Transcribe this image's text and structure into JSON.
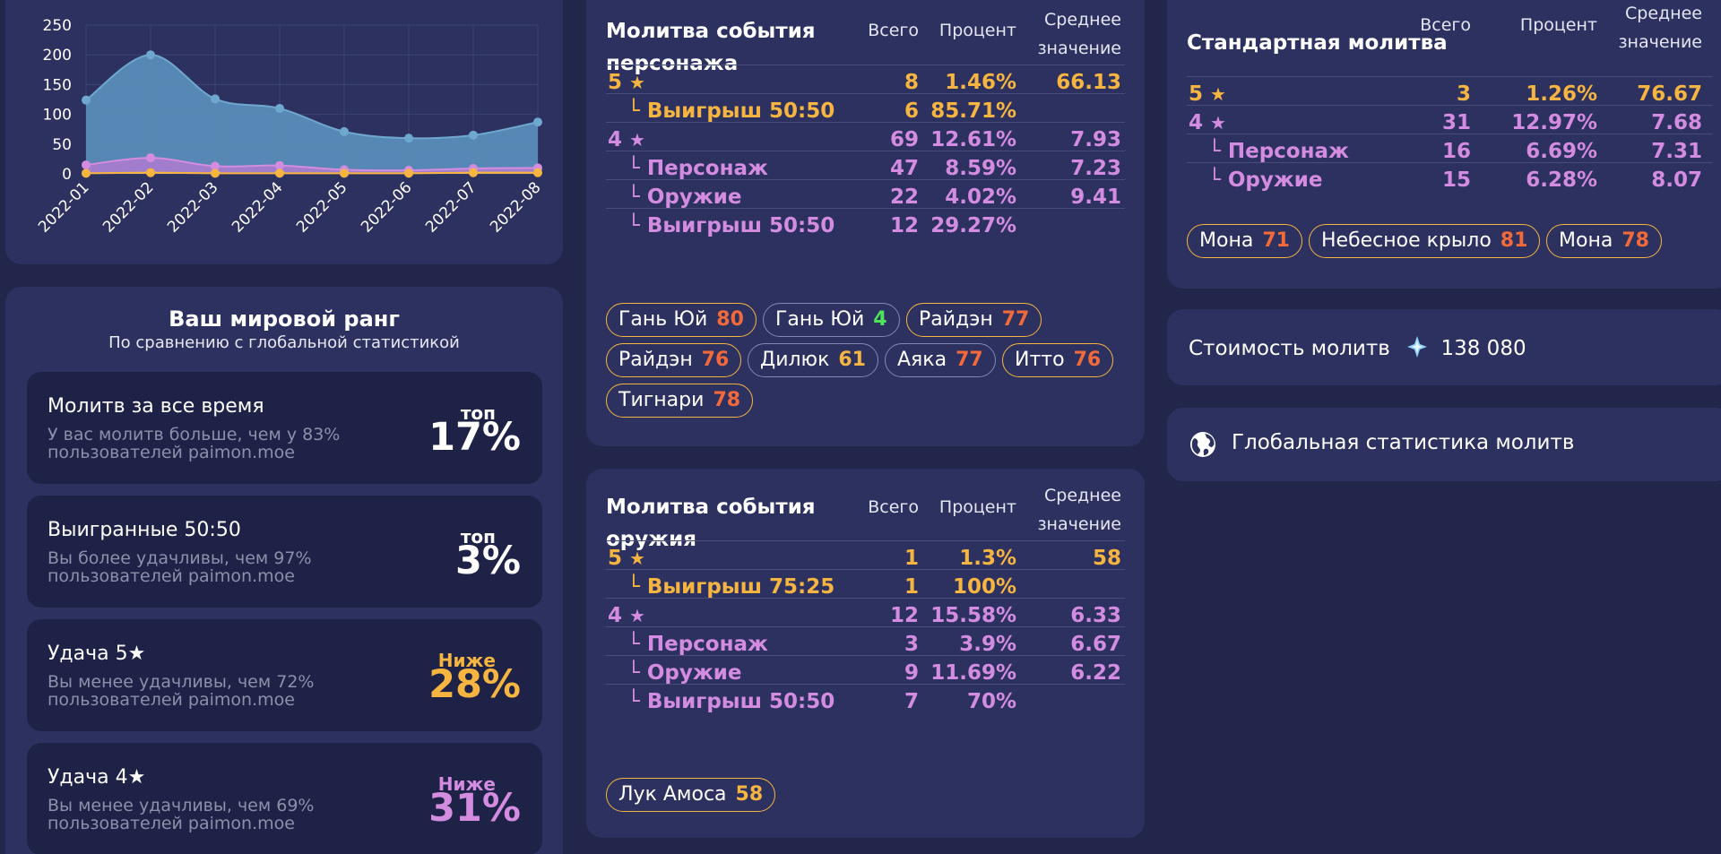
{
  "colors": {
    "background": "#22264a",
    "card": "#2c3160",
    "gold": "#f6b540",
    "purple": "#d38ce0",
    "orange_pity": "#f26a3a",
    "green_pity": "#4fe35c",
    "area_blue": "#5b8fba",
    "line_blue": "#7bb6d6"
  },
  "chart_data": {
    "type": "area",
    "x": [
      "2022-01",
      "2022-02",
      "2022-03",
      "2022-04",
      "2022-05",
      "2022-06",
      "2022-07",
      "2022-08"
    ],
    "ylim": [
      0,
      250
    ],
    "yticks": [
      "250",
      "200",
      "150",
      "100",
      "50",
      "0"
    ],
    "grid": true,
    "series": [
      {
        "color": "#6fa8cf",
        "values": [
          124,
          200,
          126,
          110,
          71,
          60,
          65,
          87
        ]
      },
      {
        "color": "#d38ce0",
        "values": [
          15,
          27,
          13,
          14,
          7,
          6,
          9,
          10
        ]
      },
      {
        "color": "#f6b540",
        "values": [
          1,
          2,
          1,
          1,
          1,
          1,
          2,
          2
        ]
      }
    ]
  },
  "rank": {
    "title": "Ваш мировой ранг",
    "subtitle": "По сравнению с глобальной статистикой",
    "items": [
      {
        "title": "Молитв за все время",
        "desc": "У вас молитв больше, чем у 83% пользователей paimon.moe",
        "prefix": "топ",
        "value": "17%",
        "color": "#ffffff"
      },
      {
        "title": "Выигранные 50:50",
        "desc": "Вы более удачливы, чем 97% пользователей paimon.moe",
        "prefix": "топ",
        "value": "3%",
        "color": "#ffffff"
      },
      {
        "title": "Удача 5★",
        "desc": "Вы менее удачливы, чем 72% пользователей paimon.moe",
        "prefix": "Ниже",
        "value": "28%",
        "color": "#f6b540"
      },
      {
        "title": "Удача 4★",
        "desc": "Вы менее удачливы, чем 69% пользователей paimon.moe",
        "prefix": "Ниже",
        "value": "31%",
        "color": "#d38ce0"
      }
    ]
  },
  "banners": {
    "character": {
      "title_line1": "Молитва события",
      "title_line2": "персонажа",
      "col_total": "Всего",
      "col_percent": "Процент",
      "col_avg_line1": "Среднее",
      "col_avg_line2": "значение",
      "rows": [
        {
          "label": "5",
          "star": "★",
          "total": "8",
          "percent": "1.46%",
          "avg": "66.13",
          "tone": "gold",
          "indent": false
        },
        {
          "label": "└ Выигрыш 50:50",
          "star": "",
          "total": "6",
          "percent": "85.71%",
          "avg": "",
          "tone": "gold",
          "indent": true
        },
        {
          "label": "4",
          "star": "★",
          "total": "69",
          "percent": "12.61%",
          "avg": "7.93",
          "tone": "purple",
          "indent": false
        },
        {
          "label": "└ Персонаж",
          "star": "",
          "total": "47",
          "percent": "8.59%",
          "avg": "7.23",
          "tone": "purple",
          "indent": true
        },
        {
          "label": "└ Оружие",
          "star": "",
          "total": "22",
          "percent": "4.02%",
          "avg": "9.41",
          "tone": "purple",
          "indent": true
        },
        {
          "label": "└ Выигрыш 50:50",
          "star": "",
          "total": "12",
          "percent": "29.27%",
          "avg": "",
          "tone": "purple",
          "indent": true
        }
      ],
      "chips": [
        {
          "name": "Гань Юй",
          "pity": "80",
          "pity_color": "#f26a3a",
          "border": "gold"
        },
        {
          "name": "Гань Юй",
          "pity": "4",
          "pity_color": "#4fe35c",
          "border": "grey"
        },
        {
          "name": "Райдэн",
          "pity": "77",
          "pity_color": "#f26a3a",
          "border": "gold"
        },
        {
          "name": "Райдэн",
          "pity": "76",
          "pity_color": "#f26a3a",
          "border": "gold"
        },
        {
          "name": "Дилюк",
          "pity": "61",
          "pity_color": "#f6b540",
          "border": "grey"
        },
        {
          "name": "Аяка",
          "pity": "77",
          "pity_color": "#f26a3a",
          "border": "grey"
        },
        {
          "name": "Итто",
          "pity": "76",
          "pity_color": "#f26a3a",
          "border": "gold"
        },
        {
          "name": "Тигнари",
          "pity": "78",
          "pity_color": "#f26a3a",
          "border": "gold"
        }
      ]
    },
    "weapon": {
      "title_line1": "Молитва события",
      "title_line2": "оружия",
      "col_total": "Всего",
      "col_percent": "Процент",
      "col_avg_line1": "Среднее",
      "col_avg_line2": "значение",
      "rows": [
        {
          "label": "5",
          "star": "★",
          "total": "1",
          "percent": "1.3%",
          "avg": "58",
          "tone": "gold",
          "indent": false
        },
        {
          "label": "└ Выигрыш 75:25",
          "star": "",
          "total": "1",
          "percent": "100%",
          "avg": "",
          "tone": "gold",
          "indent": true
        },
        {
          "label": "4",
          "star": "★",
          "total": "12",
          "percent": "15.58%",
          "avg": "6.33",
          "tone": "purple",
          "indent": false
        },
        {
          "label": "└ Персонаж",
          "star": "",
          "total": "3",
          "percent": "3.9%",
          "avg": "6.67",
          "tone": "purple",
          "indent": true
        },
        {
          "label": "└ Оружие",
          "star": "",
          "total": "9",
          "percent": "11.69%",
          "avg": "6.22",
          "tone": "purple",
          "indent": true
        },
        {
          "label": "└ Выигрыш 50:50",
          "star": "",
          "total": "7",
          "percent": "70%",
          "avg": "",
          "tone": "purple",
          "indent": true
        }
      ],
      "chips": [
        {
          "name": "Лук Амоса",
          "pity": "58",
          "pity_color": "#f6b540",
          "border": "gold"
        }
      ]
    },
    "standard": {
      "title_line1": "Стандартная молитва",
      "col_total": "Всего",
      "col_percent": "Процент",
      "col_avg_line1": "Среднее",
      "col_avg_line2": "значение",
      "rows": [
        {
          "label": "5",
          "star": "★",
          "total": "3",
          "percent": "1.26%",
          "avg": "76.67",
          "tone": "gold",
          "indent": false
        },
        {
          "label": "4",
          "star": "★",
          "total": "31",
          "percent": "12.97%",
          "avg": "7.68",
          "tone": "purple",
          "indent": false
        },
        {
          "label": "└ Персонаж",
          "star": "",
          "total": "16",
          "percent": "6.69%",
          "avg": "7.31",
          "tone": "purple",
          "indent": true
        },
        {
          "label": "└ Оружие",
          "star": "",
          "total": "15",
          "percent": "6.28%",
          "avg": "8.07",
          "tone": "purple",
          "indent": true
        }
      ],
      "chips": [
        {
          "name": "Мона",
          "pity": "71",
          "pity_color": "#f26a3a",
          "border": "gold"
        },
        {
          "name": "Небесное крыло",
          "pity": "81",
          "pity_color": "#f26a3a",
          "border": "gold"
        },
        {
          "name": "Мона",
          "pity": "78",
          "pity_color": "#f26a3a",
          "border": "gold"
        }
      ]
    }
  },
  "cost": {
    "label": "Стоимость молитв",
    "icon": "primogem-icon",
    "value": "138 080"
  },
  "global": {
    "icon": "globe-icon",
    "label": "Глобальная статистика молитв"
  }
}
